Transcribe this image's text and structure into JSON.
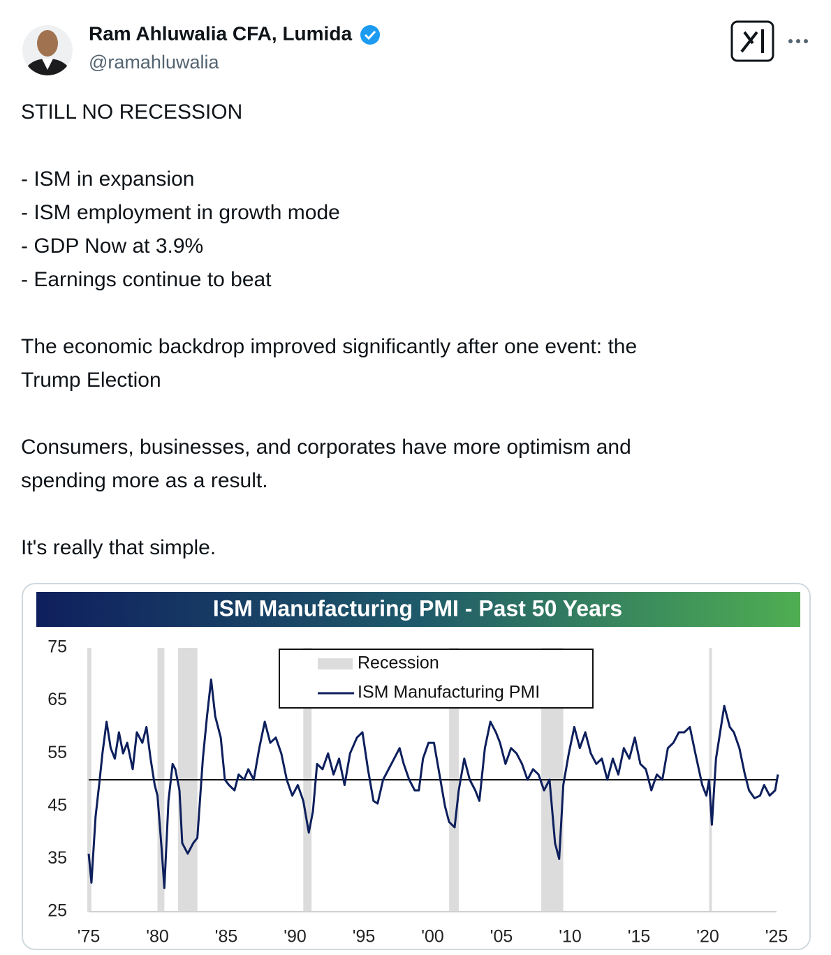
{
  "tweet": {
    "author_name": "Ram Ahluwalia CFA, Lumida",
    "handle": "@ramahluwalia",
    "paragraphs": [
      [
        "STILL NO RECESSION"
      ],
      [
        "- ISM in expansion",
        "- ISM employment in growth mode",
        "- GDP Now at 3.9%",
        "- Earnings continue to beat"
      ],
      [
        "The economic backdrop improved significantly after one event: the",
        "Trump Election"
      ],
      [
        "Consumers, businesses, and corporates have more optimism and",
        "spending more as a result."
      ],
      [
        "It's really that simple."
      ]
    ]
  },
  "chart_data": {
    "type": "line",
    "title": "ISM Manufacturing PMI - Past 50 Years",
    "xlim": [
      1975,
      2025
    ],
    "ylim": [
      25,
      75
    ],
    "yticks": [
      25,
      35,
      45,
      55,
      65,
      75
    ],
    "xticks": [
      {
        "value": 1975,
        "label": "'75"
      },
      {
        "value": 1980,
        "label": "'80"
      },
      {
        "value": 1985,
        "label": "'85"
      },
      {
        "value": 1990,
        "label": "'90"
      },
      {
        "value": 1995,
        "label": "'95"
      },
      {
        "value": 2000,
        "label": "'00"
      },
      {
        "value": 2005,
        "label": "'05"
      },
      {
        "value": 2010,
        "label": "'10"
      },
      {
        "value": 2015,
        "label": "'15"
      },
      {
        "value": 2020,
        "label": "'20"
      },
      {
        "value": 2025,
        "label": "'25"
      }
    ],
    "reference_line": 50,
    "legend": "top-center",
    "recessions": {
      "name": "Recession",
      "color": "#dcdcdc",
      "spans": [
        [
          1974.9,
          1975.2
        ],
        [
          1980.0,
          1980.5
        ],
        [
          1981.5,
          1982.9
        ],
        [
          1990.6,
          1991.2
        ],
        [
          2001.2,
          2001.9
        ],
        [
          2007.9,
          2009.5
        ],
        [
          2020.1,
          2020.3
        ]
      ]
    },
    "series": [
      {
        "name": "ISM Manufacturing PMI",
        "color": "#0d1f5c",
        "x": [
          1975.0,
          1975.2,
          1975.5,
          1975.8,
          1976.0,
          1976.3,
          1976.6,
          1976.9,
          1977.2,
          1977.5,
          1977.8,
          1978.2,
          1978.5,
          1978.9,
          1979.2,
          1979.5,
          1979.8,
          1980.0,
          1980.3,
          1980.5,
          1980.8,
          1981.1,
          1981.3,
          1981.6,
          1981.8,
          1982.2,
          1982.6,
          1982.9,
          1983.3,
          1983.6,
          1983.9,
          1984.2,
          1984.6,
          1984.9,
          1985.2,
          1985.6,
          1985.9,
          1986.3,
          1986.6,
          1987.0,
          1987.4,
          1987.8,
          1988.2,
          1988.6,
          1989.0,
          1989.4,
          1989.8,
          1990.2,
          1990.6,
          1991.0,
          1991.3,
          1991.6,
          1992.0,
          1992.4,
          1992.8,
          1993.2,
          1993.6,
          1994.0,
          1994.5,
          1994.9,
          1995.3,
          1995.7,
          1996.0,
          1996.4,
          1996.8,
          1997.2,
          1997.6,
          1997.9,
          1998.3,
          1998.7,
          1999.0,
          1999.3,
          1999.7,
          2000.1,
          2000.5,
          2000.9,
          2001.2,
          2001.6,
          2001.9,
          2002.3,
          2002.7,
          2003.1,
          2003.4,
          2003.8,
          2004.2,
          2004.6,
          2004.9,
          2005.3,
          2005.7,
          2006.1,
          2006.5,
          2006.9,
          2007.3,
          2007.7,
          2008.1,
          2008.5,
          2008.9,
          2009.2,
          2009.5,
          2009.9,
          2010.3,
          2010.7,
          2011.1,
          2011.5,
          2011.9,
          2012.3,
          2012.7,
          2013.1,
          2013.5,
          2013.9,
          2014.3,
          2014.7,
          2015.1,
          2015.5,
          2015.9,
          2016.3,
          2016.7,
          2017.1,
          2017.5,
          2017.9,
          2018.3,
          2018.7,
          2019.1,
          2019.6,
          2019.9,
          2020.1,
          2020.3,
          2020.6,
          2020.9,
          2021.2,
          2021.6,
          2021.9,
          2022.3,
          2022.7,
          2023.0,
          2023.4,
          2023.8,
          2024.1,
          2024.5,
          2024.9,
          2025.1
        ],
        "values": [
          36,
          30.5,
          43,
          50,
          55,
          61,
          56,
          54,
          59,
          55,
          57,
          52,
          59,
          57,
          60,
          54,
          49,
          47,
          37,
          29.5,
          46,
          53,
          52,
          48,
          38,
          36,
          38,
          39,
          54,
          62,
          69,
          62,
          58,
          50,
          49,
          48,
          51,
          50,
          52,
          50,
          56,
          61,
          57,
          58,
          55,
          50,
          47,
          49,
          46,
          40,
          44,
          53,
          52,
          55,
          51,
          54,
          49,
          55,
          58,
          59,
          52,
          46,
          45.5,
          50,
          52,
          54,
          56,
          53,
          50,
          48,
          48,
          54,
          57,
          57,
          51,
          45,
          42,
          41,
          48,
          54,
          50,
          48,
          46,
          56,
          61,
          59,
          57,
          53,
          56,
          55,
          53,
          50,
          52,
          51,
          48,
          50,
          38,
          35,
          49,
          55,
          60,
          56,
          59,
          55,
          53,
          54,
          50,
          54,
          51,
          56,
          54,
          58,
          53,
          52,
          48,
          51,
          50,
          56,
          57,
          59,
          59,
          60,
          55,
          49,
          47,
          50,
          41.5,
          54,
          59,
          64,
          60,
          59,
          56,
          51,
          48,
          46.5,
          47,
          49,
          47,
          48,
          51
        ]
      }
    ]
  }
}
